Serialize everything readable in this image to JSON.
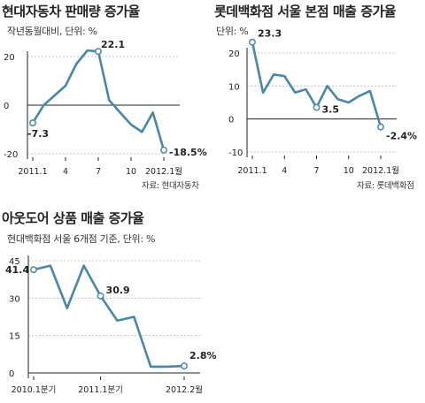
{
  "colors": {
    "line": "#4a86a8",
    "axis": "#222222",
    "grid": "#b8b8b8",
    "marker_fill": "#ffffff"
  },
  "chart_data": [
    {
      "type": "line",
      "title": "현대자동차 판매량 증가율",
      "subtitle": "작년동월대비, 단위: %",
      "source": "자료: 현대자동차",
      "x_ticks": [
        "2011.1",
        "4",
        "7",
        "10",
        "2012.1월"
      ],
      "y_ticks": [
        "20",
        "0",
        "-20"
      ],
      "ylim": [
        -20,
        20
      ],
      "grid": true,
      "x": [
        "2011.1",
        "2011.2",
        "2011.3",
        "2011.4",
        "2011.5",
        "2011.6",
        "2011.7",
        "2011.8",
        "2011.9",
        "2011.10",
        "2011.11",
        "2011.12",
        "2012.1"
      ],
      "values": [
        -7.3,
        0,
        4,
        8,
        17,
        22.5,
        22.1,
        2,
        -3,
        -8,
        -11,
        -3,
        -18.5
      ],
      "labels": [
        {
          "index": 0,
          "text": "-7.3"
        },
        {
          "index": 6,
          "text": "22.1"
        },
        {
          "index": 12,
          "text": "-18.5%"
        }
      ]
    },
    {
      "type": "line",
      "title": "롯데백화점 서울 본점 매출 증가율",
      "subtitle": "단위: %",
      "source": "자료: 롯데백화점",
      "x_ticks": [
        "2011.1",
        "4",
        "7",
        "10",
        "2012.1월"
      ],
      "y_ticks": [
        "20",
        "10",
        "0",
        "-10"
      ],
      "ylim": [
        -10,
        20
      ],
      "grid": true,
      "x": [
        "2011.1",
        "2011.2",
        "2011.3",
        "2011.4",
        "2011.5",
        "2011.6",
        "2011.7",
        "2011.8",
        "2011.9",
        "2011.10",
        "2011.11",
        "2011.12",
        "2012.1"
      ],
      "values": [
        23.3,
        8,
        13.5,
        13,
        8,
        9,
        3.5,
        10,
        6,
        5,
        7,
        8.5,
        -2.4
      ],
      "labels": [
        {
          "index": 0,
          "text": "23.3"
        },
        {
          "index": 6,
          "text": "3.5"
        },
        {
          "index": 12,
          "text": "-2.4%"
        }
      ]
    },
    {
      "type": "line",
      "title": "아웃도어 상품 매출 증가율",
      "subtitle": "현대백화점 서울 6개점 기준, 단위: %",
      "source": "",
      "x_ticks": [
        "2010.1분기",
        "2011.1분기",
        "2012.2월"
      ],
      "y_ticks": [
        "45",
        "30",
        "15",
        "0"
      ],
      "ylim": [
        0,
        45
      ],
      "grid": true,
      "x": [
        "2010.1분기",
        "2010.2분기",
        "2010.3분기",
        "2010.4분기",
        "2011.1분기",
        "2011.2분기",
        "2011.3분기",
        "2011.4분기",
        "2012.1월",
        "2012.2월"
      ],
      "values": [
        41.4,
        43,
        26,
        43,
        30.9,
        21,
        22.5,
        2.5,
        2.5,
        2.8
      ],
      "labels": [
        {
          "index": 0,
          "text": "41.4"
        },
        {
          "index": 4,
          "text": "30.9"
        },
        {
          "index": 9,
          "text": "2.8%"
        }
      ]
    }
  ]
}
